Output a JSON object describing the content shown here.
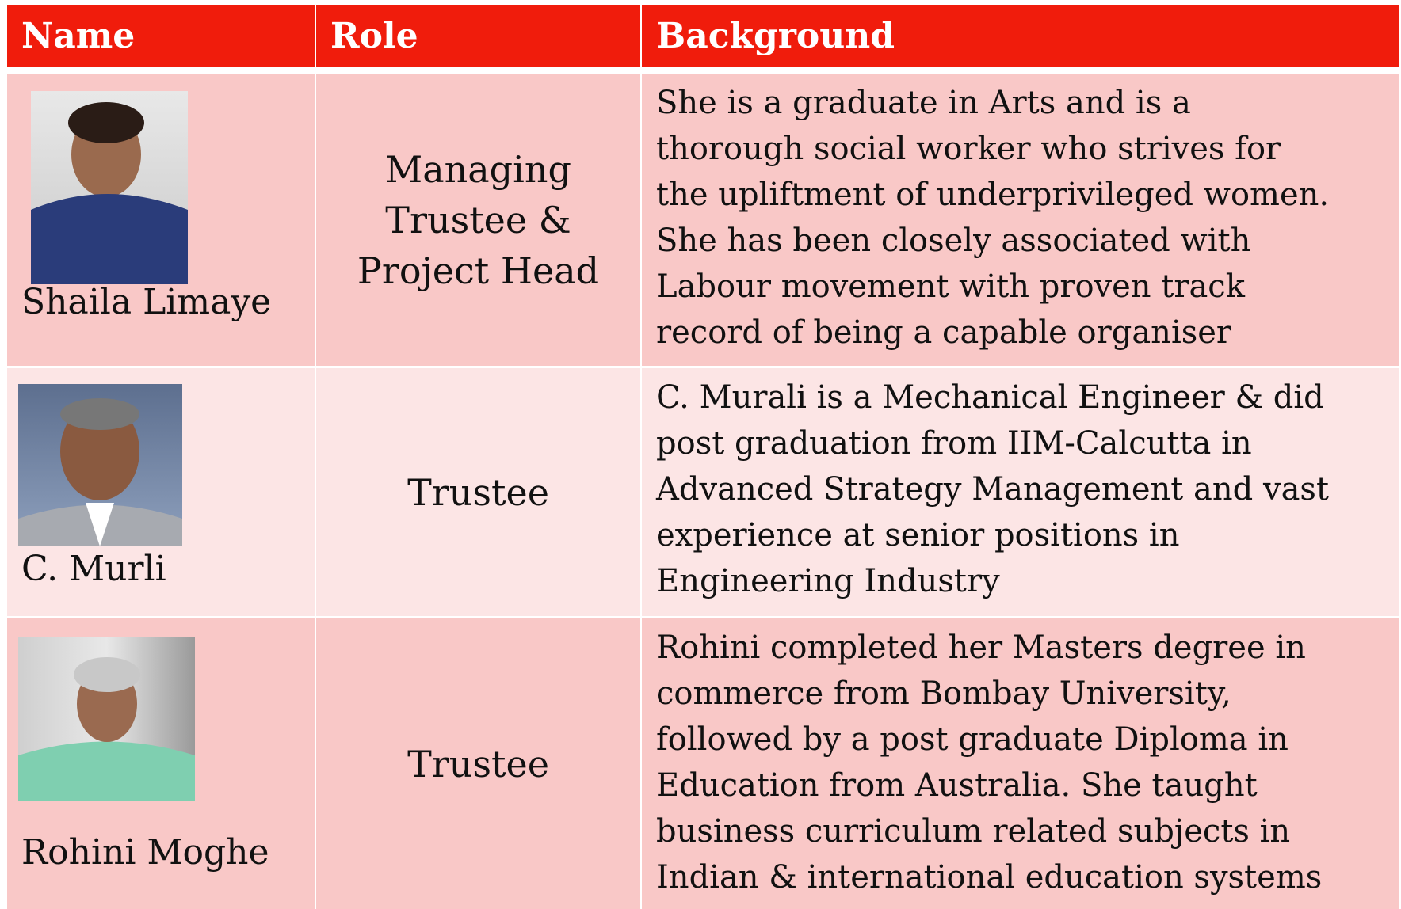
{
  "table": {
    "header": [
      "Name",
      "Role",
      "Background"
    ],
    "rows": [
      {
        "name": "Shaila Limaye",
        "role": [
          "Managing",
          "Trustee &",
          "Project Head"
        ],
        "background": [
          "She is a graduate in Arts and is a",
          "thorough social worker who strives for",
          "the upliftment of underprivileged women.",
          "She has been closely associated with",
          "Labour movement with proven track",
          "record of being a capable organiser"
        ]
      },
      {
        "name": "C. Murli",
        "role": [
          "Trustee"
        ],
        "background": [
          "C. Murali is a Mechanical Engineer & did",
          "post graduation from IIM-Calcutta in",
          "Advanced Strategy Management and vast",
          "experience at senior positions in",
          "Engineering Industry"
        ]
      },
      {
        "name": "Rohini Moghe",
        "role": [
          "Trustee"
        ],
        "background": [
          "Rohini completed her Masters degree in",
          "commerce from Bombay University,",
          "followed by a post graduate Diploma in",
          "Education from Australia. She taught",
          "business curriculum related subjects in",
          "Indian & international education systems"
        ]
      }
    ]
  }
}
